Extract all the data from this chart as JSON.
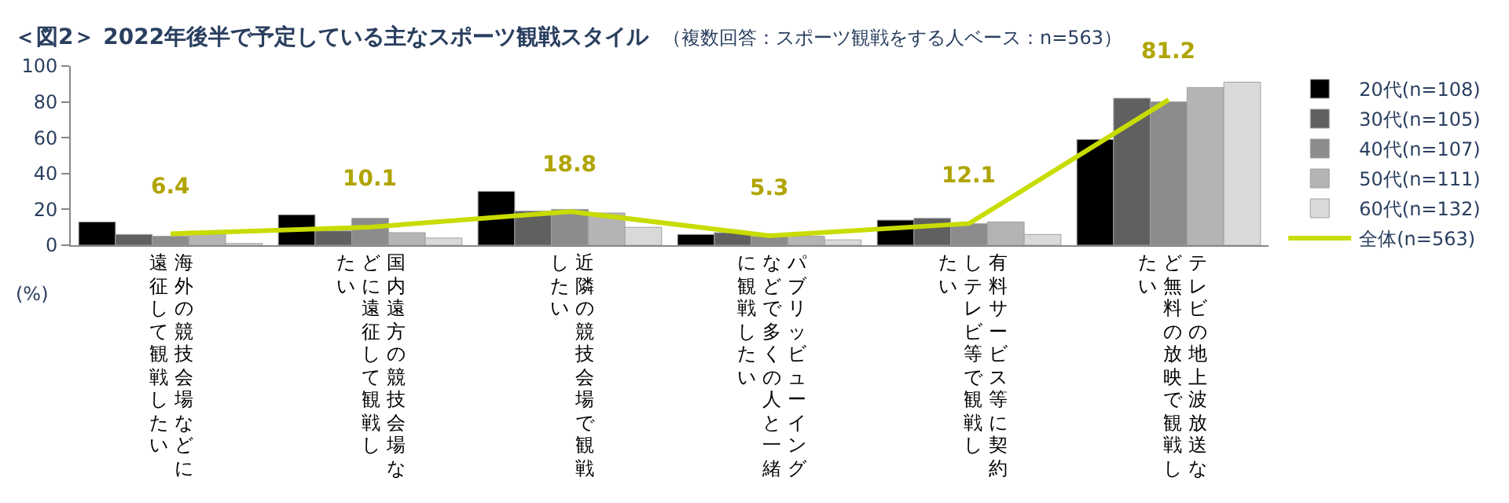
{
  "chart_data": {
    "type": "bar",
    "title": "＜図2＞ 2022年後半で予定している主なスポーツ観戦スタイル",
    "subtitle": "（複数回答：スポーツ観戦をする人ベース：n=563）",
    "ylabel": "(%)",
    "categories": [
      "海外の競技会場などに遠征して観戦したい",
      "国内遠方の競技会場などに遠征して観戦したい",
      "近隣の競技会場で観戦したい",
      "パブリッビューイングなどで多くの人と一緒に観戦したい",
      "有料サービス等に契約しテレビ等で観戦したい",
      "テレビの地上波放送など無料の放映で観戦したい"
    ],
    "ylim": [
      0,
      100
    ],
    "yticks": [
      0,
      20,
      40,
      60,
      80,
      100
    ],
    "legend": "right",
    "series": [
      {
        "name": "20代(n=108)",
        "color": "#000000",
        "values": [
          13,
          17,
          30,
          6,
          14,
          59
        ]
      },
      {
        "name": "30代(n=105)",
        "color": "#606060",
        "values": [
          6,
          8,
          19,
          7,
          15,
          82
        ]
      },
      {
        "name": "40代(n=107)",
        "color": "#8c8c8c",
        "values": [
          5,
          15,
          20,
          5,
          12,
          80
        ]
      },
      {
        "name": "50代(n=111)",
        "color": "#b4b4b4",
        "values": [
          6,
          7,
          18,
          5,
          13,
          88
        ]
      },
      {
        "name": "60代(n=132)",
        "color": "#d9d9d9",
        "values": [
          1,
          4,
          10,
          3,
          6,
          91
        ]
      },
      {
        "name": "全体(n=563)",
        "type": "line",
        "color": "#c8dc00",
        "values": [
          6.4,
          10.1,
          18.8,
          5.3,
          12.1,
          81.2
        ],
        "value_labels": [
          "6.4",
          "10.1",
          "18.8",
          "5.3",
          "12.1",
          "81.2"
        ]
      }
    ]
  }
}
